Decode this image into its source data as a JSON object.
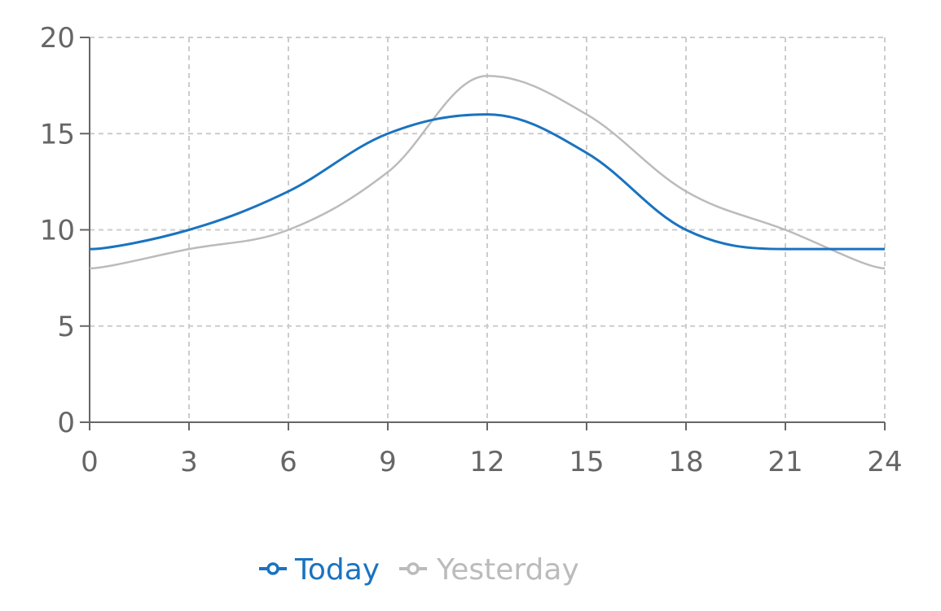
{
  "chart_data": {
    "type": "line",
    "x": [
      0,
      3,
      6,
      9,
      12,
      15,
      18,
      21,
      24
    ],
    "xticks": [
      "0",
      "3",
      "6",
      "9",
      "12",
      "15",
      "18",
      "21",
      "24"
    ],
    "yticks": [
      "0",
      "5",
      "10",
      "15",
      "20"
    ],
    "xlim": [
      0,
      24
    ],
    "ylim": [
      0,
      20
    ],
    "grid": true,
    "legend_position": "bottom",
    "series": [
      {
        "name": "Today",
        "color": "#1a73c0",
        "values": [
          9,
          10,
          12,
          15,
          16,
          14,
          10,
          9,
          9
        ]
      },
      {
        "name": "Yesterday",
        "color": "#bbbbbb",
        "values": [
          8,
          9,
          10,
          13,
          18,
          16,
          12,
          10,
          8
        ]
      }
    ],
    "title": "",
    "xlabel": "",
    "ylabel": ""
  }
}
